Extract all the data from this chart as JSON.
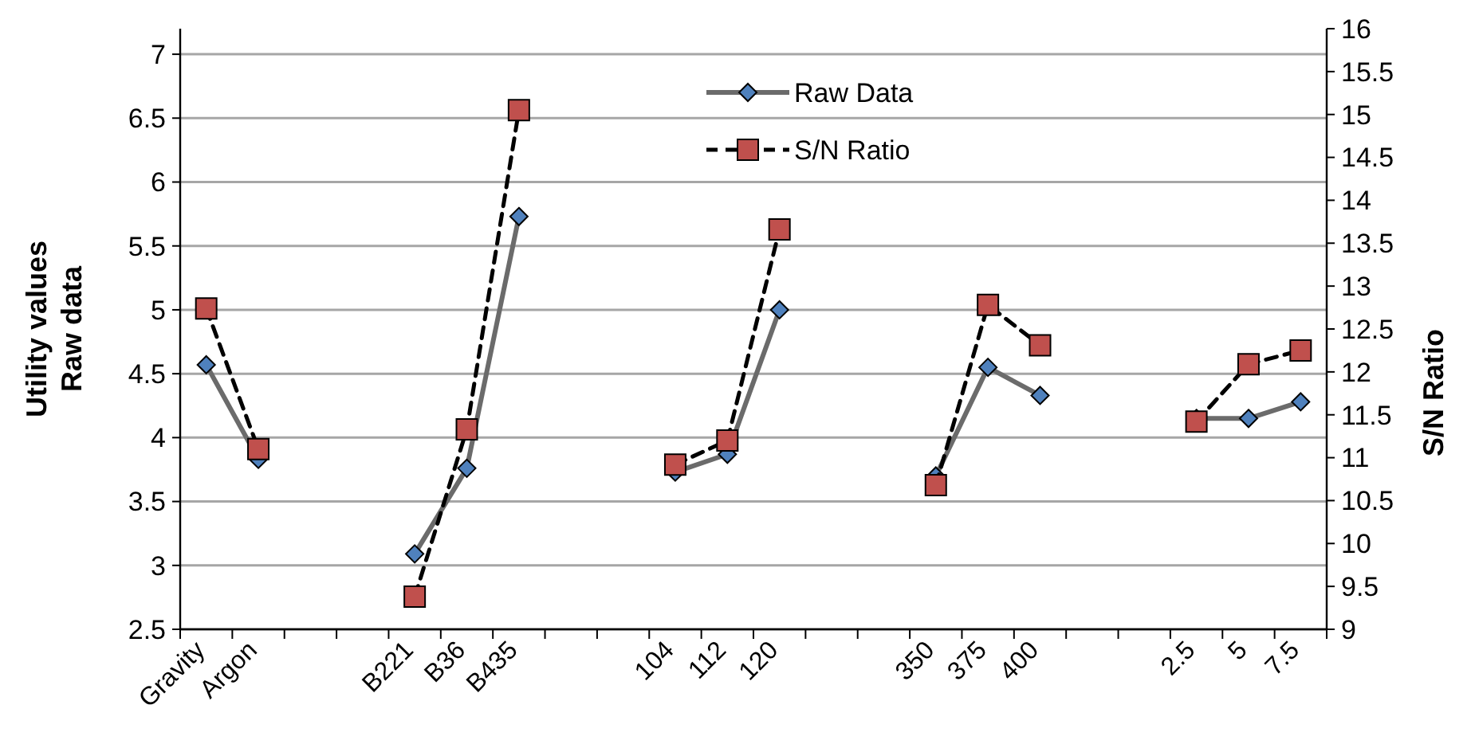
{
  "chart_data": {
    "type": "line",
    "ylabel": "Utility values\nRaw data",
    "y2label": "S/N Ratio",
    "categories": [
      "Gravity",
      "Argon",
      null,
      null,
      "B221",
      "B36",
      "B435",
      null,
      null,
      "104",
      "112",
      "120",
      null,
      null,
      "350",
      "375",
      "400",
      null,
      null,
      "2.5",
      "5",
      "7.5"
    ],
    "series": [
      {
        "name": "Raw Data",
        "color": "#4f81bd",
        "marker": "diamond",
        "line_style": "solid",
        "values": [
          4.57,
          3.83,
          null,
          null,
          3.09,
          3.76,
          5.73,
          null,
          null,
          3.73,
          3.87,
          5.0,
          null,
          null,
          3.7,
          4.55,
          4.33,
          null,
          null,
          4.15,
          4.15,
          4.28
        ]
      },
      {
        "name": "S/N Ratio",
        "color": "#c0504d",
        "marker": "square",
        "line_style": "dashed",
        "axis": "y2",
        "values": [
          12.74,
          11.1,
          null,
          null,
          9.38,
          11.33,
          15.05,
          null,
          null,
          10.92,
          11.2,
          13.66,
          null,
          null,
          10.68,
          12.78,
          12.31,
          null,
          null,
          11.42,
          12.09,
          12.25
        ]
      }
    ],
    "ylim": [
      2.5,
      7.2
    ],
    "yticks": [
      2.5,
      3,
      3.5,
      4,
      4.5,
      5,
      5.5,
      6,
      6.5,
      7
    ],
    "y2lim": [
      9,
      16
    ],
    "y2ticks": [
      9,
      9.5,
      10,
      10.5,
      11,
      11.5,
      12,
      12.5,
      13,
      13.5,
      14,
      14.5,
      15,
      15.5,
      16
    ],
    "grid": "y",
    "legend": "top"
  }
}
